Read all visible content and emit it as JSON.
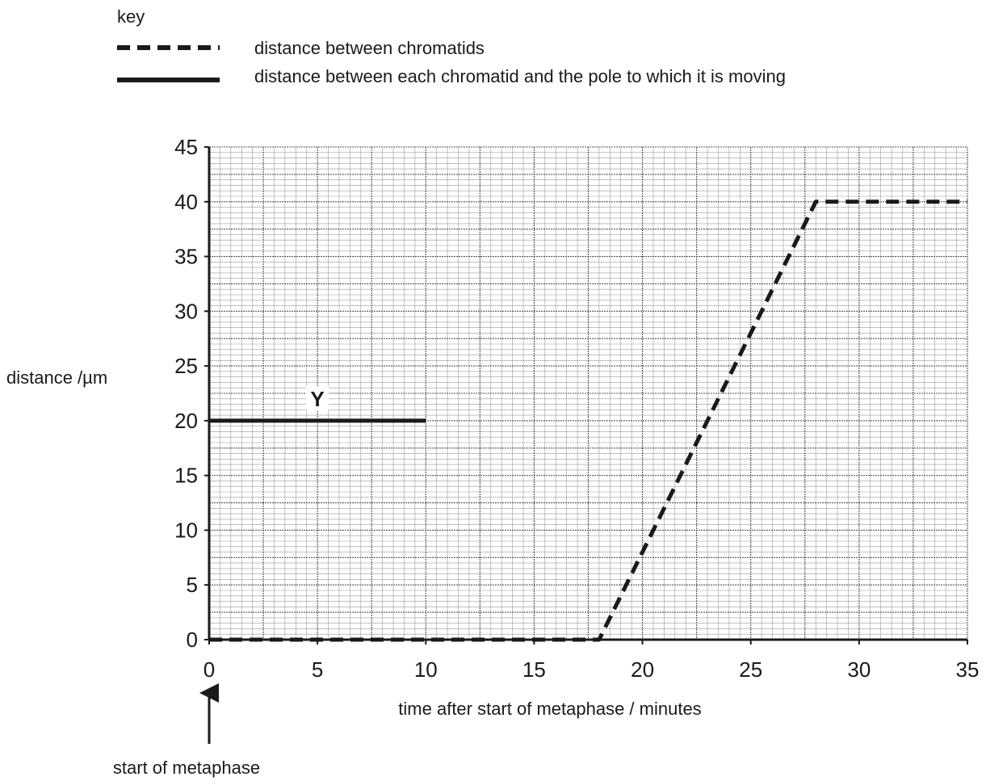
{
  "chart_data": {
    "type": "line",
    "key": {
      "title": "key",
      "entries": [
        {
          "label": "distance between chromatids",
          "style": "dashed"
        },
        {
          "label": "distance between each chromatid and the pole to which it is moving",
          "style": "solid"
        }
      ]
    },
    "xlabel": "time after start of metaphase / minutes",
    "ylabel": "distance /µm",
    "xlim": [
      0,
      35
    ],
    "ylim": [
      0,
      45
    ],
    "xticks": [
      "0",
      "5",
      "10",
      "15",
      "20",
      "25",
      "30",
      "35"
    ],
    "yticks": [
      "0",
      "5",
      "10",
      "15",
      "20",
      "25",
      "30",
      "35",
      "40",
      "45"
    ],
    "grid": true,
    "series": [
      {
        "name": "distance between chromatids",
        "style": "dashed",
        "x": [
          0,
          18,
          28,
          35
        ],
        "y": [
          0,
          0,
          40,
          40
        ]
      },
      {
        "name": "distance between each chromatid and the pole to which it is moving",
        "style": "solid",
        "x": [
          0,
          10
        ],
        "y": [
          20,
          20
        ]
      }
    ],
    "annotations": [
      {
        "text": "Y",
        "x": 5,
        "y": 20
      },
      {
        "text": "start of metaphase",
        "x": 0,
        "arrow": "up"
      }
    ],
    "colors": {
      "line": "#1a1a1a",
      "grid_major": "#555555",
      "grid_minor": "#9a9a9a"
    }
  }
}
